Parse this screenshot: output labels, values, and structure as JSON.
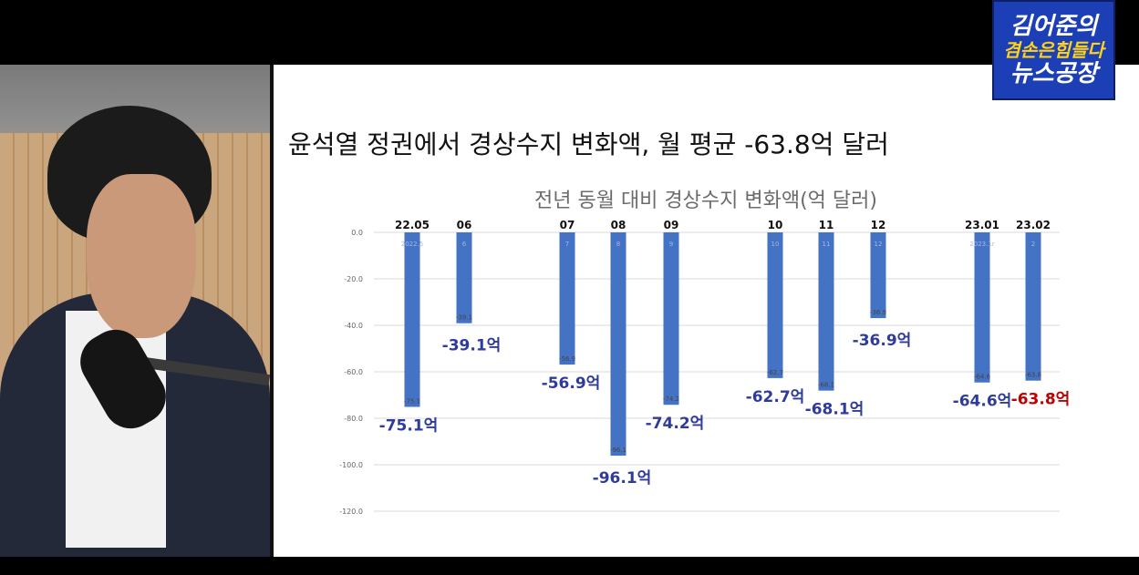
{
  "slide": {
    "heading": "윤석열 정권에서 경상수지 변화액, 월 평균 -63.8억 달러"
  },
  "logo": {
    "line1": "김어준의",
    "line2": "겸손은힘들다",
    "line3": "뉴스공장"
  },
  "chart_data": {
    "type": "bar",
    "title": "전년 동월 대비 경상수지 변화액(억 달러)",
    "ylim": [
      -120,
      0
    ],
    "yticks": [
      "0.0",
      "-20.0",
      "-40.0",
      "-60.0",
      "-80.0",
      "-100.0",
      "-120.0"
    ],
    "grid": true,
    "categories": [
      "22.05",
      "06",
      "07",
      "08",
      "09",
      "10",
      "11",
      "12",
      "23.01",
      "23.02"
    ],
    "inner_labels": [
      "2022.5",
      "6",
      "7",
      "8",
      "9",
      "10",
      "11",
      "12",
      "2023.1r",
      "2"
    ],
    "values": [
      -75.1,
      -39.1,
      -56.9,
      -96.1,
      -74.2,
      -62.7,
      -68.1,
      -36.9,
      -64.6,
      -63.8
    ],
    "small_labels": [
      "-75.1",
      "-39.1",
      "-56.9",
      "-96.1",
      "-74.2",
      "-62.7",
      "-68.1",
      "-36.9",
      "-64.6",
      "-63.8"
    ],
    "big_labels": [
      "-75.1억",
      "-39.1억",
      "-56.9억",
      "-96.1억",
      "-74.2억",
      "-62.7억",
      "-68.1억",
      "-36.9억",
      "-64.6억",
      "-63.8억"
    ],
    "bar_color": "#4472c4",
    "label_color": "#2f3b9a",
    "highlight_color": "#c00000",
    "highlight_index": 9
  }
}
